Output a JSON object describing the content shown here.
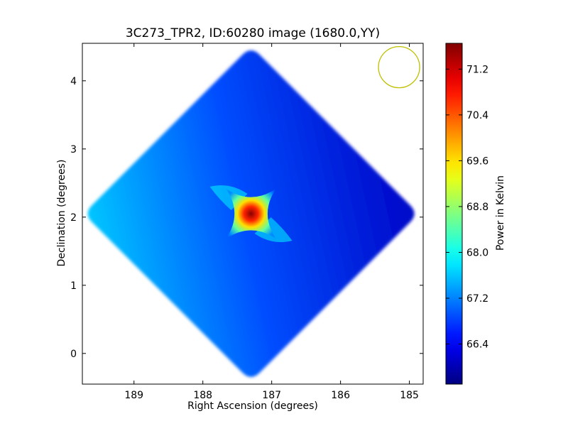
{
  "chart_data": {
    "type": "heatmap",
    "title": "3C273_TPR2, ID:60280 image (1680.0,YY)",
    "xlabel": "Right Ascension (degrees)",
    "ylabel": "Declination (degrees)",
    "xlim": [
      189.75,
      184.8
    ],
    "ylim": [
      -0.45,
      4.55
    ],
    "x_ticks": [
      189,
      188,
      187,
      186,
      185
    ],
    "y_ticks": [
      0,
      1,
      2,
      3,
      4
    ],
    "colorbar": {
      "label": "Power in Kelvin",
      "min": 65.7,
      "max": 71.65,
      "ticks": [
        "66.4",
        "67.2",
        "68.0",
        "68.8",
        "69.6",
        "70.4",
        "71.2"
      ],
      "colormap": "jet"
    },
    "map": {
      "center_ra": 187.3,
      "center_dec": 2.05,
      "background_level": 66.9,
      "east_level": 66.1,
      "west_level": 67.6,
      "peak_level": 71.6,
      "peak_ra": 187.3,
      "peak_dec": 2.05
    },
    "beam_marker": {
      "ra": 185.15,
      "dec": 4.2,
      "color": "#bfbf00"
    }
  }
}
